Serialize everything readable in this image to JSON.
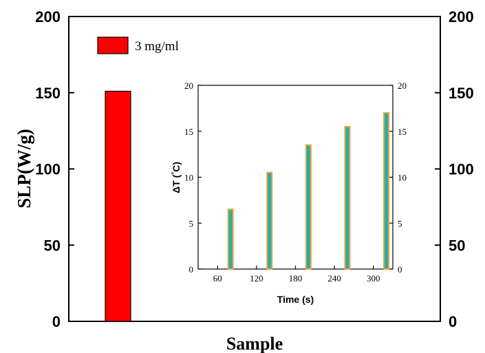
{
  "chart_data": [
    {
      "type": "bar",
      "xlabel": "Sample",
      "ylabel": "SLP(W/g)",
      "ylim": [
        0,
        200
      ],
      "yticks": [
        "0",
        "50",
        "100",
        "150",
        "200"
      ],
      "right_axis_ticks": [
        "0",
        "50",
        "100",
        "150",
        "200"
      ],
      "categories": [
        ""
      ],
      "series": [
        {
          "name": "3 mg/ml",
          "values": [
            151
          ],
          "color": "#ff0000"
        }
      ],
      "legend": "top-left",
      "grid": false
    },
    {
      "type": "bar",
      "xlabel": "Time (s)",
      "ylabel": "ΔT (°C)",
      "ylabel_parts": {
        "main": "ΔT (",
        "degree": "°",
        "unit": "C)"
      },
      "xlim": [
        30,
        330
      ],
      "ylim": [
        0,
        20
      ],
      "xticks": [
        "60",
        "120",
        "180",
        "240",
        "300"
      ],
      "yticks": [
        "0",
        "5",
        "10",
        "15",
        "20"
      ],
      "right_axis_ticks": [
        "0",
        "5",
        "10",
        "15",
        "20"
      ],
      "x": [
        80,
        140,
        200,
        260,
        320
      ],
      "values": [
        6.5,
        10.5,
        13.5,
        15.5,
        17
      ],
      "fill_color": "#20b2aa",
      "edge_color": "#f5a040",
      "grid": false
    }
  ]
}
